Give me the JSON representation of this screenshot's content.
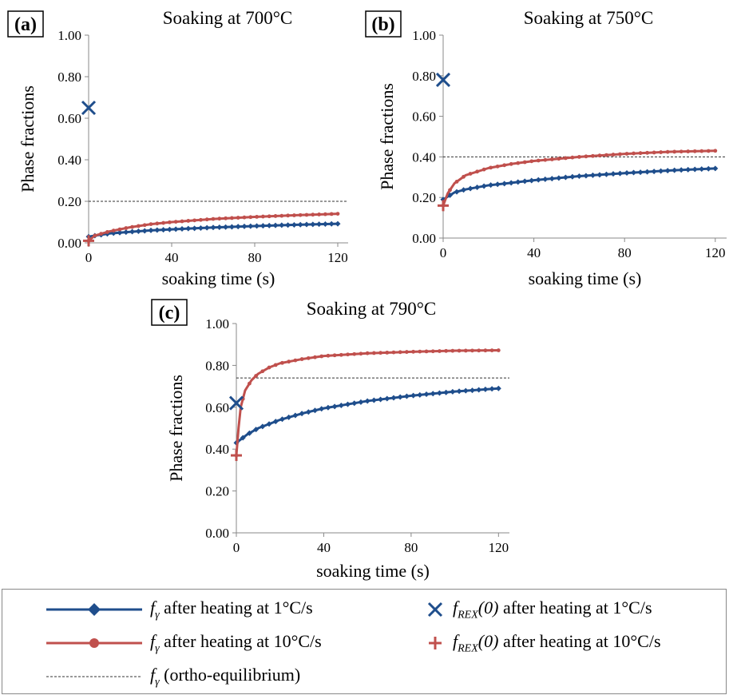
{
  "panels": [
    {
      "label": "(a)",
      "title": "Soaking at 700°C"
    },
    {
      "label": "(b)",
      "title": "Soaking at 750°C"
    },
    {
      "label": "(c)",
      "title": "Soaking at 790°C"
    }
  ],
  "axes": {
    "ylabel": "Phase fractions",
    "xlabel": "soaking time (s)",
    "yticks": [
      "0.00",
      "0.20",
      "0.40",
      "0.60",
      "0.80",
      "1.00"
    ],
    "xticks": [
      "0",
      "40",
      "80",
      "120"
    ]
  },
  "legend": {
    "blue_line": {
      "sym": "f",
      "sub": "γ",
      "rest": " after heating at 1°C/s"
    },
    "red_line": {
      "sym": "f",
      "sub": "γ",
      "rest": " after heating at 10°C/s"
    },
    "dashed": {
      "sym": "f",
      "sub": "γ",
      "rest": " (ortho-equilibrium)"
    },
    "blue_x": {
      "sym": "f",
      "sub": "REX",
      "arg": "(0)",
      "rest": " after heating at 1°C/s"
    },
    "red_plus": {
      "sym": "f",
      "sub": "REX",
      "arg": "(0)",
      "rest": " after heating at 10°C/s"
    }
  },
  "colors": {
    "blue": "#1f4e8c",
    "red": "#c0504d",
    "dashed": "#333333"
  },
  "chart_data": [
    {
      "type": "line",
      "title": "Soaking at 700°C",
      "xlabel": "soaking time (s)",
      "ylabel": "Phase fractions",
      "xlim": [
        0,
        125
      ],
      "ylim": [
        0,
        1
      ],
      "series": [
        {
          "name": "fγ after heating at 1°C/s",
          "color": "#1f4e8c",
          "marker": "diamond",
          "x": [
            0,
            10,
            20,
            30,
            40,
            60,
            80,
            100,
            120
          ],
          "y": [
            0.03,
            0.045,
            0.053,
            0.06,
            0.065,
            0.074,
            0.081,
            0.087,
            0.092
          ]
        },
        {
          "name": "fγ after heating at 10°C/s",
          "color": "#c0504d",
          "marker": "circle",
          "x": [
            0,
            3,
            10,
            20,
            30,
            40,
            60,
            80,
            100,
            120
          ],
          "y": [
            0.01,
            0.035,
            0.055,
            0.075,
            0.09,
            0.1,
            0.115,
            0.125,
            0.133,
            0.14
          ]
        }
      ],
      "equilibrium": 0.2,
      "rex_1": 0.65,
      "rex_10": 0.01
    },
    {
      "type": "line",
      "title": "Soaking at 750°C",
      "xlabel": "soaking time (s)",
      "ylabel": "Phase fractions",
      "xlim": [
        0,
        125
      ],
      "ylim": [
        0,
        1
      ],
      "series": [
        {
          "name": "fγ after heating at 1°C/s",
          "color": "#1f4e8c",
          "marker": "diamond",
          "x": [
            0,
            5,
            10,
            20,
            30,
            40,
            60,
            80,
            100,
            120
          ],
          "y": [
            0.19,
            0.225,
            0.24,
            0.26,
            0.272,
            0.285,
            0.305,
            0.32,
            0.333,
            0.343
          ]
        },
        {
          "name": "fγ after heating at 10°C/s",
          "color": "#c0504d",
          "marker": "circle",
          "x": [
            0,
            2,
            5,
            10,
            20,
            30,
            40,
            60,
            80,
            100,
            120
          ],
          "y": [
            0.16,
            0.22,
            0.27,
            0.31,
            0.345,
            0.365,
            0.38,
            0.4,
            0.415,
            0.425,
            0.43
          ]
        }
      ],
      "equilibrium": 0.4,
      "rex_1": 0.78,
      "rex_10": 0.16
    },
    {
      "type": "line",
      "title": "Soaking at 790°C",
      "xlabel": "soaking time (s)",
      "ylabel": "Phase fractions",
      "xlim": [
        0,
        125
      ],
      "ylim": [
        0,
        1
      ],
      "series": [
        {
          "name": "fγ after heating at 1°C/s",
          "color": "#1f4e8c",
          "marker": "diamond",
          "x": [
            0,
            5,
            10,
            20,
            30,
            40,
            60,
            80,
            100,
            120
          ],
          "y": [
            0.43,
            0.47,
            0.5,
            0.54,
            0.57,
            0.595,
            0.63,
            0.655,
            0.675,
            0.69
          ]
        },
        {
          "name": "fγ after heating at 10°C/s",
          "color": "#c0504d",
          "marker": "circle",
          "x": [
            0,
            1,
            2,
            4,
            7,
            10,
            15,
            20,
            30,
            40,
            60,
            80,
            100,
            120
          ],
          "y": [
            0.37,
            0.5,
            0.6,
            0.68,
            0.73,
            0.76,
            0.79,
            0.81,
            0.83,
            0.845,
            0.858,
            0.865,
            0.87,
            0.872
          ]
        }
      ],
      "equilibrium": 0.74,
      "rex_1": 0.62,
      "rex_10": 0.37
    }
  ]
}
